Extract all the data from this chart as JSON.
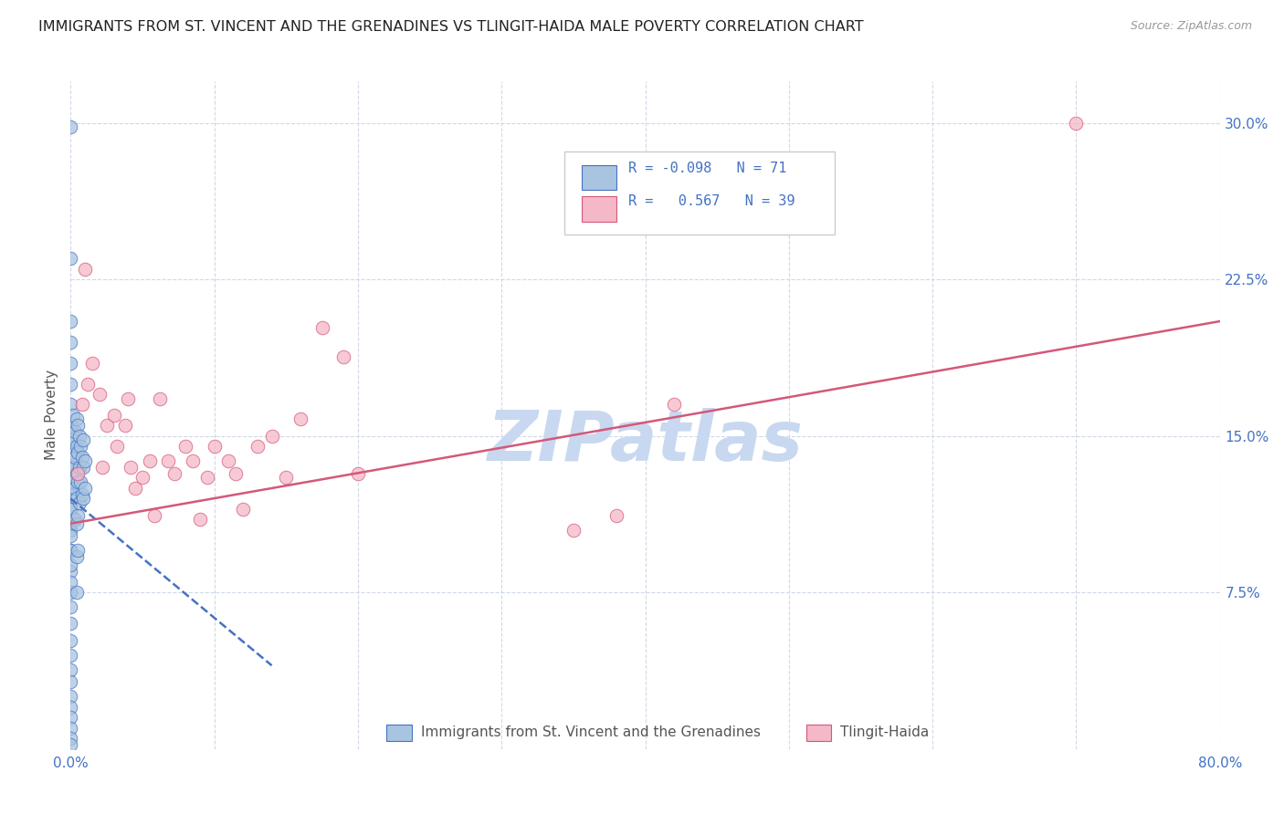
{
  "title": "IMMIGRANTS FROM ST. VINCENT AND THE GRENADINES VS TLINGIT-HAIDA MALE POVERTY CORRELATION CHART",
  "source": "Source: ZipAtlas.com",
  "ylabel": "Male Poverty",
  "x_min": 0.0,
  "x_max": 0.8,
  "y_min": 0.0,
  "y_max": 0.32,
  "color_blue": "#a8c4e0",
  "color_pink": "#f4b8c8",
  "color_blue_line": "#4472c4",
  "color_pink_line": "#d45878",
  "color_legend_text": "#4472c4",
  "color_grid": "#d0d8e8",
  "watermark_color": "#c8d8f0",
  "blue_scatter_x": [
    0.0,
    0.0,
    0.0,
    0.0,
    0.0,
    0.0,
    0.0,
    0.0,
    0.0,
    0.0,
    0.0,
    0.0,
    0.0,
    0.0,
    0.0,
    0.0,
    0.0,
    0.0,
    0.0,
    0.0,
    0.0,
    0.0,
    0.0,
    0.0,
    0.0,
    0.0,
    0.0,
    0.0,
    0.0,
    0.0,
    0.0,
    0.0,
    0.0,
    0.0,
    0.0,
    0.0,
    0.0,
    0.0,
    0.0,
    0.0,
    0.002,
    0.002,
    0.002,
    0.003,
    0.003,
    0.003,
    0.003,
    0.004,
    0.004,
    0.004,
    0.004,
    0.004,
    0.004,
    0.004,
    0.005,
    0.005,
    0.005,
    0.005,
    0.005,
    0.006,
    0.006,
    0.006,
    0.007,
    0.007,
    0.008,
    0.008,
    0.009,
    0.009,
    0.009,
    0.01,
    0.01
  ],
  "blue_scatter_y": [
    0.298,
    0.235,
    0.205,
    0.195,
    0.185,
    0.175,
    0.165,
    0.155,
    0.145,
    0.135,
    0.125,
    0.115,
    0.105,
    0.095,
    0.085,
    0.075,
    0.068,
    0.06,
    0.052,
    0.045,
    0.038,
    0.032,
    0.025,
    0.02,
    0.015,
    0.01,
    0.005,
    0.002,
    0.155,
    0.148,
    0.142,
    0.135,
    0.128,
    0.122,
    0.115,
    0.108,
    0.102,
    0.095,
    0.088,
    0.08,
    0.16,
    0.148,
    0.135,
    0.152,
    0.14,
    0.125,
    0.11,
    0.158,
    0.145,
    0.132,
    0.12,
    0.108,
    0.092,
    0.075,
    0.155,
    0.142,
    0.128,
    0.112,
    0.095,
    0.15,
    0.135,
    0.118,
    0.145,
    0.128,
    0.14,
    0.122,
    0.148,
    0.135,
    0.12,
    0.138,
    0.125
  ],
  "pink_scatter_x": [
    0.005,
    0.008,
    0.01,
    0.012,
    0.015,
    0.02,
    0.022,
    0.025,
    0.03,
    0.032,
    0.038,
    0.04,
    0.042,
    0.045,
    0.05,
    0.055,
    0.058,
    0.062,
    0.068,
    0.072,
    0.08,
    0.085,
    0.09,
    0.095,
    0.1,
    0.11,
    0.115,
    0.12,
    0.13,
    0.14,
    0.15,
    0.16,
    0.175,
    0.19,
    0.2,
    0.35,
    0.38,
    0.42,
    0.7
  ],
  "pink_scatter_y": [
    0.132,
    0.165,
    0.23,
    0.175,
    0.185,
    0.17,
    0.135,
    0.155,
    0.16,
    0.145,
    0.155,
    0.168,
    0.135,
    0.125,
    0.13,
    0.138,
    0.112,
    0.168,
    0.138,
    0.132,
    0.145,
    0.138,
    0.11,
    0.13,
    0.145,
    0.138,
    0.132,
    0.115,
    0.145,
    0.15,
    0.13,
    0.158,
    0.202,
    0.188,
    0.132,
    0.105,
    0.112,
    0.165,
    0.3
  ],
  "blue_trend_x0": 0.0,
  "blue_trend_x1": 0.14,
  "blue_trend_y0": 0.12,
  "blue_trend_y1": 0.04,
  "pink_trend_x0": 0.0,
  "pink_trend_x1": 0.8,
  "pink_trend_y0": 0.108,
  "pink_trend_y1": 0.205
}
